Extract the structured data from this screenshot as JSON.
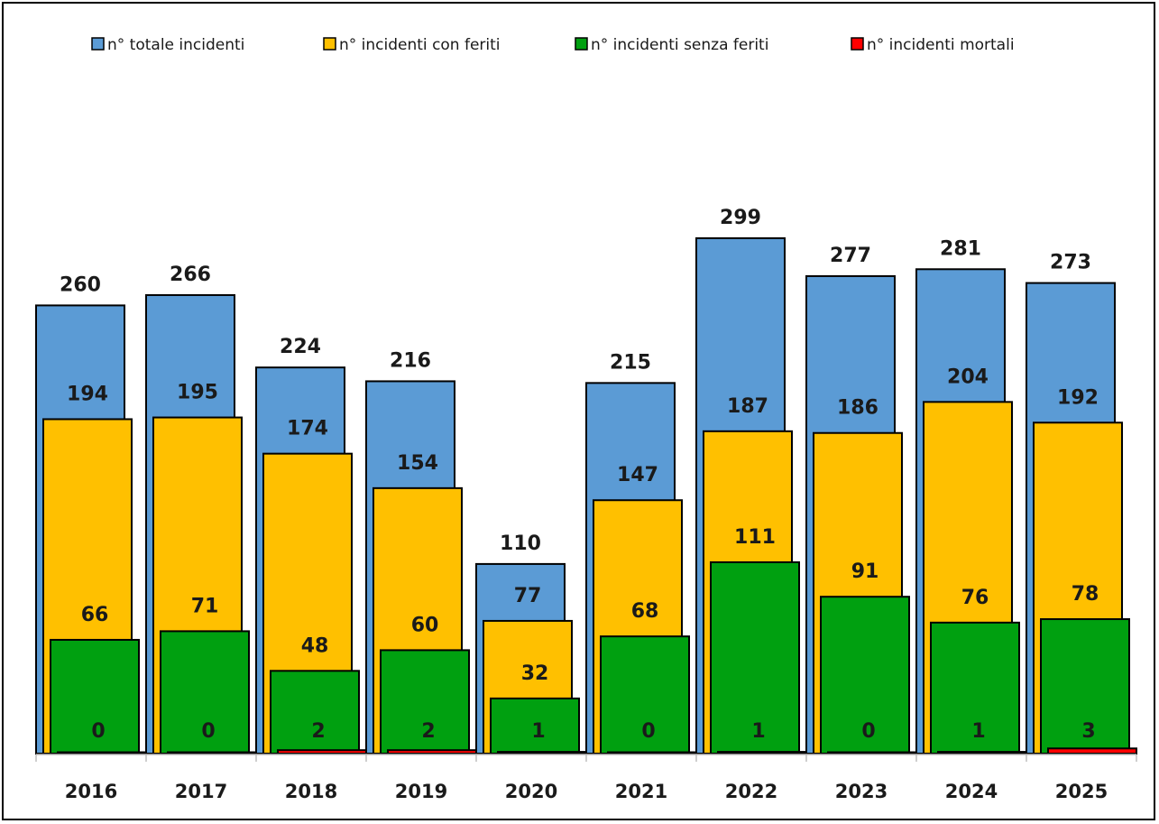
{
  "chart_data": {
    "type": "bar",
    "categories": [
      "2016",
      "2017",
      "2018",
      "2019",
      "2020",
      "2021",
      "2022",
      "2023",
      "2024",
      "2025"
    ],
    "series": [
      {
        "name": "n° totale incidenti",
        "color": "#5b9bd5",
        "values": [
          260,
          266,
          224,
          216,
          110,
          215,
          299,
          277,
          281,
          273
        ]
      },
      {
        "name": "n° incidenti con feriti",
        "color": "#ffc000",
        "values": [
          194,
          195,
          174,
          154,
          77,
          147,
          187,
          186,
          204,
          192
        ]
      },
      {
        "name": "n° incidenti senza feriti",
        "color": "#00a010",
        "values": [
          66,
          71,
          48,
          60,
          32,
          68,
          111,
          91,
          76,
          78
        ]
      },
      {
        "name": "n° incidenti mortali",
        "color": "#ff0000",
        "values": [
          0,
          0,
          2,
          2,
          1,
          0,
          1,
          0,
          1,
          3
        ]
      }
    ],
    "ylim": [
      0,
      300
    ],
    "grid": false,
    "legend": "top",
    "data_labels": true,
    "overlapping_bars": true
  }
}
